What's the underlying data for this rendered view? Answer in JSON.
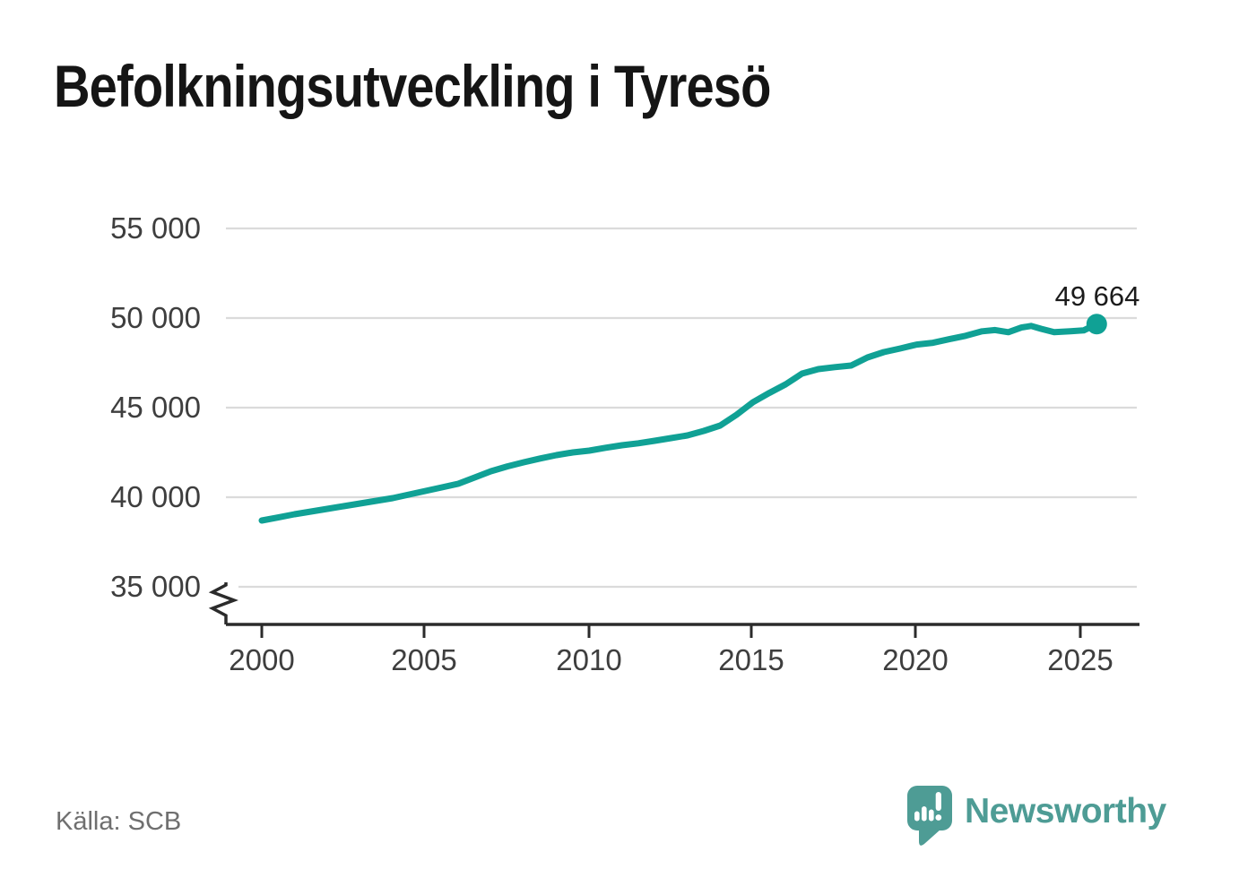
{
  "title": "Befolkningsutveckling i Tyresö",
  "source": "Källa: SCB",
  "branding": {
    "name": "Newsworthy"
  },
  "colors": {
    "background": "#ffffff",
    "line": "#10a195",
    "grid": "#dbdbdb",
    "axis": "#2b2b2b",
    "tick_label": "#3e3e3e",
    "title": "#151515",
    "annotation": "#1b1b1b",
    "source": "#6f6f6f",
    "brand": "#4e9c95"
  },
  "chart_data": {
    "type": "line",
    "title": "Befolkningsutveckling i Tyresö",
    "xlabel": "",
    "ylabel": "",
    "grid": "horizontal-only",
    "legend": "none",
    "y_axis_break": true,
    "xlim": [
      1998.9,
      2026.8
    ],
    "ylim": [
      34000,
      55000
    ],
    "x_tick_labels": [
      "2000",
      "2005",
      "2010",
      "2015",
      "2020",
      "2025"
    ],
    "x_tick_years": [
      2000,
      2005,
      2010,
      2015,
      2020,
      2025
    ],
    "y_tick_labels": [
      "55 000",
      "50 000",
      "45 000",
      "40 000",
      "35 000"
    ],
    "y_tick_values": [
      55000,
      50000,
      45000,
      40000,
      35000
    ],
    "annotation": {
      "label": "49 664",
      "x": 2025.5,
      "y": 49664
    },
    "series": [
      {
        "points": [
          [
            2000.0,
            38700
          ],
          [
            2000.5,
            38870
          ],
          [
            2001.0,
            39050
          ],
          [
            2001.5,
            39200
          ],
          [
            2002.0,
            39350
          ],
          [
            2002.5,
            39500
          ],
          [
            2003.0,
            39650
          ],
          [
            2003.5,
            39800
          ],
          [
            2004.0,
            39950
          ],
          [
            2004.5,
            40150
          ],
          [
            2005.0,
            40350
          ],
          [
            2005.5,
            40550
          ],
          [
            2006.0,
            40750
          ],
          [
            2006.5,
            41100
          ],
          [
            2007.0,
            41450
          ],
          [
            2007.5,
            41720
          ],
          [
            2008.0,
            41950
          ],
          [
            2008.5,
            42160
          ],
          [
            2009.0,
            42350
          ],
          [
            2009.5,
            42500
          ],
          [
            2010.0,
            42600
          ],
          [
            2010.5,
            42760
          ],
          [
            2011.0,
            42900
          ],
          [
            2011.5,
            43010
          ],
          [
            2012.0,
            43150
          ],
          [
            2012.5,
            43300
          ],
          [
            2013.0,
            43450
          ],
          [
            2013.5,
            43700
          ],
          [
            2014.0,
            44000
          ],
          [
            2014.5,
            44600
          ],
          [
            2015.0,
            45300
          ],
          [
            2015.5,
            45820
          ],
          [
            2016.0,
            46300
          ],
          [
            2016.5,
            46900
          ],
          [
            2017.0,
            47150
          ],
          [
            2017.5,
            47260
          ],
          [
            2018.0,
            47350
          ],
          [
            2018.5,
            47800
          ],
          [
            2019.0,
            48100
          ],
          [
            2019.5,
            48300
          ],
          [
            2020.0,
            48520
          ],
          [
            2020.5,
            48620
          ],
          [
            2021.0,
            48820
          ],
          [
            2021.5,
            49010
          ],
          [
            2022.0,
            49260
          ],
          [
            2022.4,
            49330
          ],
          [
            2022.8,
            49210
          ],
          [
            2023.2,
            49470
          ],
          [
            2023.5,
            49560
          ],
          [
            2023.8,
            49400
          ],
          [
            2024.2,
            49210
          ],
          [
            2024.7,
            49260
          ],
          [
            2025.1,
            49310
          ],
          [
            2025.5,
            49664
          ]
        ]
      }
    ]
  }
}
